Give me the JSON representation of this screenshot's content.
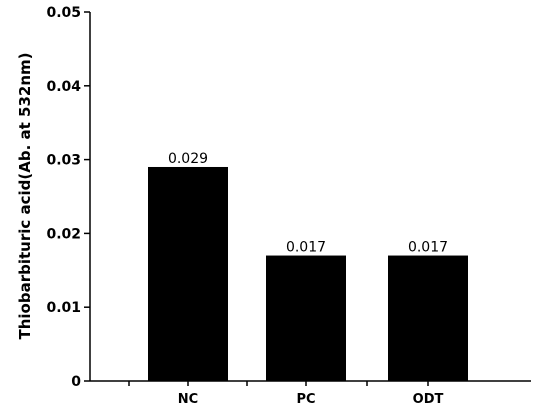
{
  "chart_data": {
    "type": "bar",
    "categories": [
      "NC",
      "PC",
      "ODT"
    ],
    "values": [
      0.029,
      0.017,
      0.017
    ],
    "data_labels": [
      "0.029",
      "0.017",
      "0.017"
    ],
    "title": "",
    "xlabel": "",
    "ylabel": "Thiobarbituric acid(Ab. at 532nm)",
    "ylim": [
      0,
      0.05
    ],
    "yticks": [
      0,
      0.01,
      0.02,
      0.03,
      0.04,
      0.05
    ],
    "ytick_labels": [
      "0",
      "0.01",
      "0.02",
      "0.03",
      "0.04",
      "0.05"
    ],
    "grid": false,
    "legend": "none",
    "colors": {
      "bar": "#000000",
      "axis": "#000000",
      "background": "#ffffff"
    }
  }
}
